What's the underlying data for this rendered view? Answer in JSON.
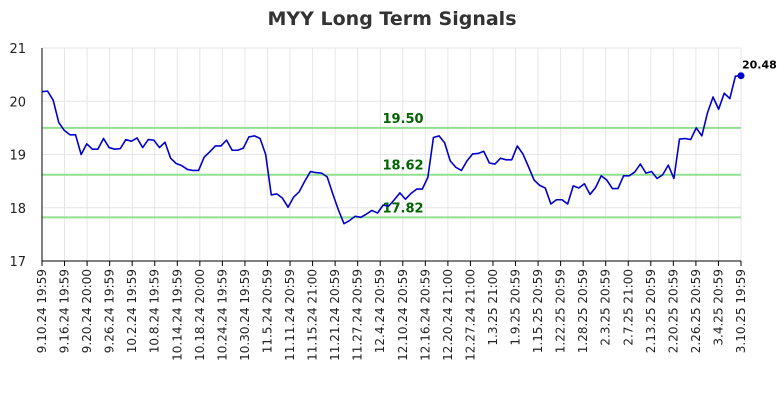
{
  "chart_data": {
    "type": "line",
    "title": "MYY Long Term Signals",
    "xlabel": "",
    "ylabel": "",
    "ylim": [
      17,
      21
    ],
    "yticks": [
      "17",
      "18",
      "19",
      "20",
      "21"
    ],
    "grid": true,
    "xtick_labels": [
      "9.10.24 19:59",
      "9.16.24 19:59",
      "9.20.24 20:00",
      "9.26.24 19:59",
      "10.2.24 19:59",
      "10.8.24 19:59",
      "10.14.24 19:59",
      "10.18.24 20:00",
      "10.24.24 19:59",
      "10.30.24 19:59",
      "11.5.24 20:59",
      "11.11.24 20:59",
      "11.15.24 21:00",
      "11.21.24 20:59",
      "11.27.24 20:59",
      "12.4.24 20:59",
      "12.10.24 20:59",
      "12.16.24 20:59",
      "12.20.24 21:00",
      "12.27.24 21:00",
      "1.3.25 21:00",
      "1.9.25 20:59",
      "1.15.25 20:59",
      "1.22.25 20:59",
      "1.28.25 20:59",
      "2.3.25 20:59",
      "2.7.25 21:00",
      "2.13.25 20:59",
      "2.20.25 20:59",
      "2.26.25 20:59",
      "3.4.25 20:59",
      "3.10.25 19:59"
    ],
    "series": [
      {
        "color": "#0000cc",
        "values": [
          20.18,
          20.19,
          20.02,
          19.6,
          19.45,
          19.37,
          19.37,
          19.0,
          19.2,
          19.1,
          19.1,
          19.3,
          19.13,
          19.1,
          19.11,
          19.28,
          19.25,
          19.31,
          19.13,
          19.28,
          19.27,
          19.13,
          19.23,
          18.93,
          18.83,
          18.79,
          18.72,
          18.7,
          18.7,
          18.95,
          19.05,
          19.16,
          19.16,
          19.27,
          19.08,
          19.08,
          19.12,
          19.33,
          19.35,
          19.3,
          19.0,
          18.24,
          18.26,
          18.18,
          18.01,
          18.2,
          18.3,
          18.5,
          18.68,
          18.66,
          18.65,
          18.58,
          18.26,
          17.96,
          17.7,
          17.76,
          17.84,
          17.82,
          17.88,
          17.95,
          17.9,
          18.05,
          18.03,
          18.15,
          18.28,
          18.16,
          18.27,
          18.35,
          18.35,
          18.57,
          19.32,
          19.35,
          19.22,
          18.88,
          18.76,
          18.7,
          18.88,
          19.01,
          19.02,
          19.06,
          18.84,
          18.82,
          18.93,
          18.9,
          18.9,
          19.16,
          19.01,
          18.77,
          18.52,
          18.42,
          18.37,
          18.07,
          18.15,
          18.15,
          18.07,
          18.41,
          18.37,
          18.45,
          18.25,
          18.38,
          18.6,
          18.52,
          18.36,
          18.36,
          18.6,
          18.6,
          18.67,
          18.82,
          18.65,
          18.68,
          18.55,
          18.62,
          18.8,
          18.55,
          19.29,
          19.3,
          19.28,
          19.5,
          19.35,
          19.78,
          20.08,
          19.85,
          20.15,
          20.05,
          20.47,
          20.48
        ]
      }
    ],
    "hlines": [
      {
        "value": 19.5,
        "label": "19.50",
        "color": "#90e090",
        "label_color": "#006400"
      },
      {
        "value": 18.62,
        "label": "18.62",
        "color": "#90e090",
        "label_color": "#006400"
      },
      {
        "value": 17.82,
        "label": "17.82",
        "color": "#90e090",
        "label_color": "#006400"
      }
    ],
    "last_point_label": "20.48"
  }
}
